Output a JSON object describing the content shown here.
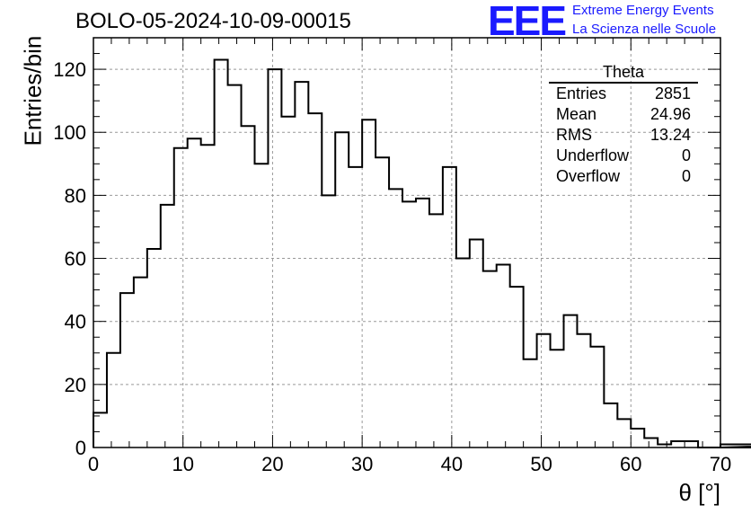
{
  "title": "BOLO-05-2024-10-09-00015",
  "logo": {
    "mark": "EEE",
    "line1": "Extreme Energy Events",
    "line2": "La Scienza nelle Scuole",
    "color": "#1a1aff"
  },
  "stats": {
    "name": "Theta",
    "rows": [
      {
        "label": "Entries",
        "value": "2851"
      },
      {
        "label": "Mean",
        "value": "24.96"
      },
      {
        "label": "RMS",
        "value": "13.24"
      },
      {
        "label": "Underflow",
        "value": "0"
      },
      {
        "label": "Overflow",
        "value": "0"
      }
    ]
  },
  "chart_data": {
    "type": "bar",
    "style": "step-histogram",
    "title": "BOLO-05-2024-10-09-00015",
    "xlabel": "θ [°]",
    "ylabel": "Entries/bin",
    "xlim": [
      0,
      70
    ],
    "ylim": [
      0,
      130
    ],
    "bin_width": 1.5,
    "grid": true,
    "legend": "top-right",
    "x_ticks": [
      0,
      10,
      20,
      30,
      40,
      50,
      60,
      70
    ],
    "y_ticks": [
      0,
      20,
      40,
      60,
      80,
      100,
      120
    ],
    "values": [
      11,
      30,
      49,
      54,
      63,
      77,
      95,
      98,
      96,
      123,
      115,
      102,
      90,
      120,
      105,
      116,
      106,
      80,
      100,
      89,
      104,
      92,
      82,
      78,
      79,
      74,
      89,
      60,
      66,
      56,
      58,
      51,
      28,
      36,
      31,
      42,
      36,
      32,
      14,
      9,
      6,
      3,
      1,
      2,
      2,
      0,
      0,
      0,
      0,
      0,
      0,
      0,
      0,
      0,
      0,
      1
    ]
  }
}
